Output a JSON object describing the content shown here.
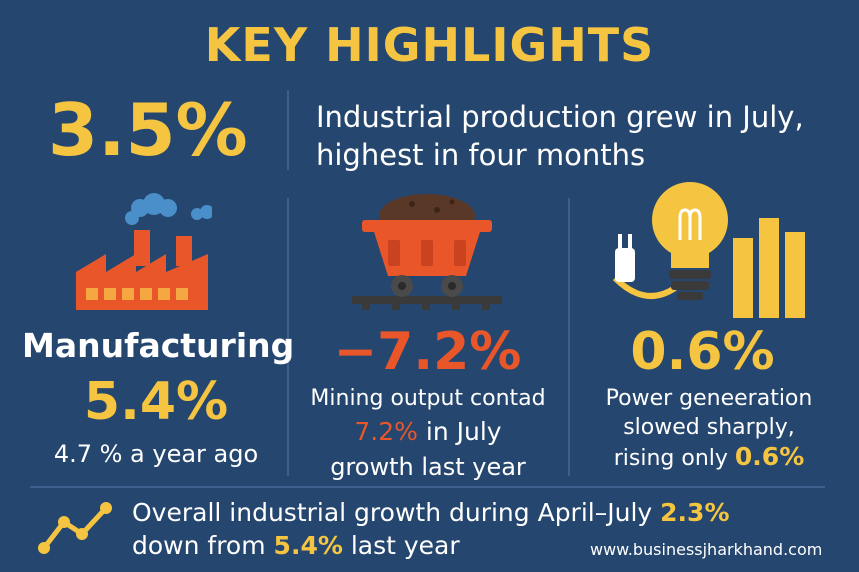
{
  "title": "KEY HIGHLIGHTS",
  "headline": {
    "stat": "3.5%",
    "line1": "Industrial production grew in July,",
    "line2": "highest in four months"
  },
  "manufacturing": {
    "label": "Manufacturing",
    "value": "5.4%",
    "prior": "4.7 % a year ago"
  },
  "mining": {
    "value": "−7.2%",
    "line1": "Mining output contad",
    "line2_value": "7.2%",
    "line2_text": "in July",
    "line3": "growth last year"
  },
  "power": {
    "value": "0.6%",
    "line1": "Power geneeration",
    "line2": "slowed sharply,",
    "line3_text": "rising only",
    "line3_value": "0.6%"
  },
  "footer": {
    "line1_text": "Overall industrial growth during April–July",
    "line1_value": "2.3%",
    "line2_text": "down from",
    "line2_value": "5.4%",
    "line2_tail": "last year"
  },
  "url": "www.businessjharkhand.com",
  "colors": {
    "background": "#25466e",
    "accent_yellow": "#f5c542",
    "accent_orange": "#e8562a",
    "divider": "#3c5f8d"
  },
  "icons": [
    "factory-icon",
    "mine-cart-icon",
    "lightbulb-plug-bars-icon",
    "trend-line-icon"
  ]
}
